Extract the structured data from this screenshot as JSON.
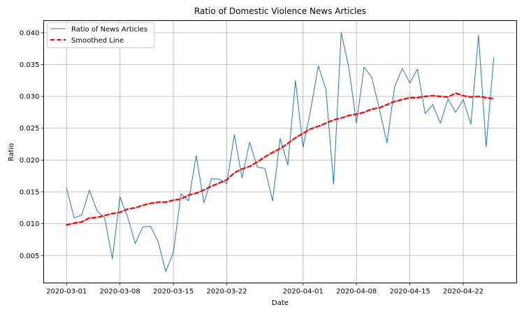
{
  "chart_data": {
    "type": "line",
    "title": "Ratio of Domestic Violence News Articles",
    "xlabel": "Date",
    "ylabel": "Ratio",
    "x_start": "2020-03-01",
    "x_end": "2020-04-26",
    "xlim": [
      "2020-02-27",
      "2020-04-29"
    ],
    "ylim": [
      0.0007,
      0.0419
    ],
    "x_ticks": [
      {
        "date": "2020-03-01",
        "label": "2020-03-01"
      },
      {
        "date": "2020-03-08",
        "label": "2020-03-08"
      },
      {
        "date": "2020-03-15",
        "label": "2020-03-15"
      },
      {
        "date": "2020-03-22",
        "label": "2020-03-22"
      },
      {
        "date": "2020-04-01",
        "label": "2020-04-01"
      },
      {
        "date": "2020-04-08",
        "label": "2020-04-08"
      },
      {
        "date": "2020-04-15",
        "label": "2020-04-15"
      },
      {
        "date": "2020-04-22",
        "label": "2020-04-22"
      }
    ],
    "y_ticks": [
      {
        "value": 0.005,
        "label": "0.005"
      },
      {
        "value": 0.01,
        "label": "0.010"
      },
      {
        "value": 0.015,
        "label": "0.015"
      },
      {
        "value": 0.02,
        "label": "0.020"
      },
      {
        "value": 0.025,
        "label": "0.025"
      },
      {
        "value": 0.03,
        "label": "0.030"
      },
      {
        "value": 0.035,
        "label": "0.035"
      },
      {
        "value": 0.04,
        "label": "0.040"
      }
    ],
    "grid": true,
    "legend_position": "top-left",
    "series": [
      {
        "name": "Ratio of News Articles",
        "color": "#1f77b4",
        "style": "solid",
        "values": [
          0.0156,
          0.0109,
          0.0114,
          0.0153,
          0.012,
          0.0109,
          0.0045,
          0.0142,
          0.0111,
          0.0069,
          0.0095,
          0.0096,
          0.0072,
          0.0025,
          0.0055,
          0.0147,
          0.0136,
          0.0207,
          0.0133,
          0.0171,
          0.017,
          0.0163,
          0.024,
          0.0172,
          0.0228,
          0.0189,
          0.0187,
          0.0136,
          0.0234,
          0.0192,
          0.0325,
          0.022,
          0.0279,
          0.0348,
          0.0311,
          0.0162,
          0.04,
          0.0345,
          0.0258,
          0.0346,
          0.033,
          0.028,
          0.0227,
          0.0315,
          0.0344,
          0.0321,
          0.0343,
          0.0273,
          0.0287,
          0.0258,
          0.0296,
          0.0275,
          0.0295,
          0.0256,
          0.0396,
          0.0221,
          0.0361
        ]
      },
      {
        "name": "Smoothed Line",
        "color": "#ff0000",
        "style": "dashed",
        "values": [
          0.0098,
          0.0101,
          0.0103,
          0.0109,
          0.011,
          0.0113,
          0.0116,
          0.0118,
          0.0123,
          0.0125,
          0.0129,
          0.0132,
          0.0134,
          0.0134,
          0.0137,
          0.0139,
          0.0145,
          0.0148,
          0.0153,
          0.0159,
          0.0164,
          0.0169,
          0.018,
          0.0186,
          0.019,
          0.0197,
          0.0205,
          0.0212,
          0.0218,
          0.0226,
          0.0235,
          0.0242,
          0.0249,
          0.0253,
          0.0258,
          0.0263,
          0.0266,
          0.027,
          0.0272,
          0.0275,
          0.028,
          0.0282,
          0.0287,
          0.0292,
          0.0295,
          0.0298,
          0.0298,
          0.03,
          0.0301,
          0.03,
          0.0299,
          0.0305,
          0.0301,
          0.0299,
          0.03,
          0.0298,
          0.0296
        ]
      }
    ]
  }
}
